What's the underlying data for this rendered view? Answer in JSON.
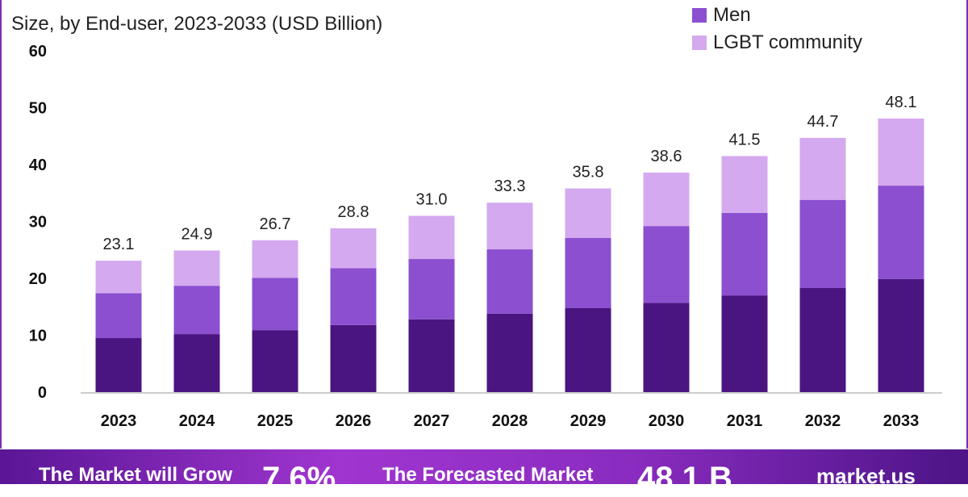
{
  "chart_data": {
    "type": "bar",
    "stacked": true,
    "subtitle": "Size, by End-user, 2023-2033 (USD Billion)",
    "categories": [
      "2023",
      "2024",
      "2025",
      "2026",
      "2027",
      "2028",
      "2029",
      "2030",
      "2031",
      "2032",
      "2033"
    ],
    "series": [
      {
        "name": "",
        "color": "#4b1581",
        "values": [
          9.5,
          10.2,
          10.9,
          11.8,
          12.8,
          13.8,
          14.8,
          15.7,
          17.0,
          18.3,
          19.9
        ]
      },
      {
        "name": "Men",
        "color": "#8b4fd0",
        "values": [
          7.9,
          8.5,
          9.2,
          10.0,
          10.6,
          11.3,
          12.3,
          13.5,
          14.5,
          15.5,
          16.4
        ]
      },
      {
        "name": "LGBT community",
        "color": "#d4a9ef",
        "values": [
          5.7,
          6.2,
          6.6,
          7.0,
          7.6,
          8.2,
          8.7,
          9.4,
          10.0,
          10.9,
          11.8
        ]
      }
    ],
    "totals": [
      "23.1",
      "24.9",
      "26.7",
      "28.8",
      "31.0",
      "33.3",
      "35.8",
      "38.6",
      "41.5",
      "44.7",
      "48.1"
    ],
    "yticks": [
      "0",
      "10",
      "20",
      "30",
      "40",
      "50",
      "60"
    ],
    "ylim": [
      0,
      60
    ],
    "xlabel": "",
    "ylabel": "",
    "grid": false,
    "legend_position": "top-right"
  },
  "banner": {
    "grow_label": "The Market will Grow",
    "cagr": "7.6%",
    "forecast_label": "The Forecasted Market",
    "forecast_value": "48.1 B",
    "brand": "market.us"
  }
}
